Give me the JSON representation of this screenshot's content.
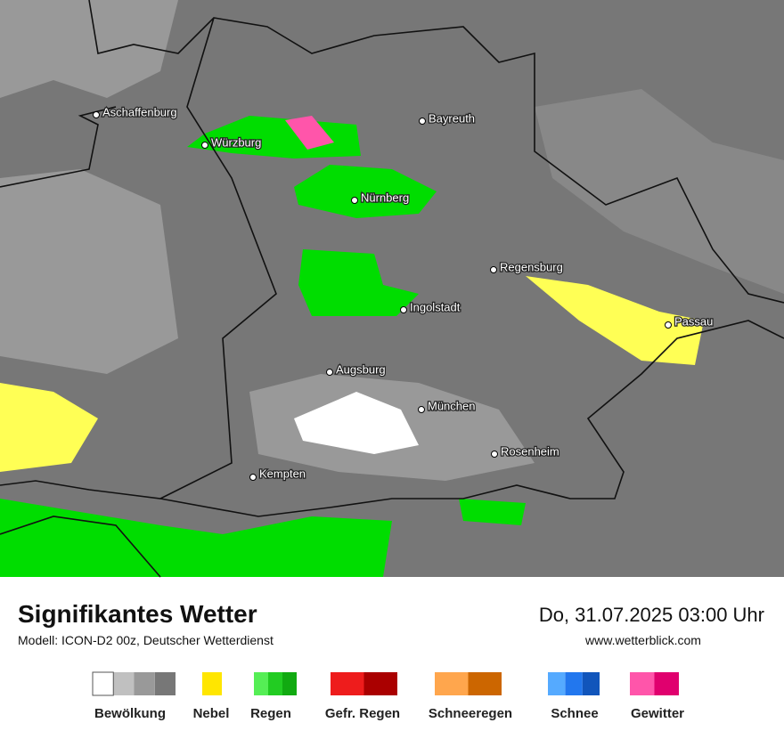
{
  "map": {
    "cities": [
      {
        "name": "Aschaffenburg"
      },
      {
        "name": "Würzburg"
      },
      {
        "name": "Bayreuth"
      },
      {
        "name": "Nürnberg"
      },
      {
        "name": "Regensburg"
      },
      {
        "name": "Ingolstadt"
      },
      {
        "name": "Passau"
      },
      {
        "name": "Augsburg"
      },
      {
        "name": "München"
      },
      {
        "name": "Rosenheim"
      },
      {
        "name": "Kempten"
      }
    ]
  },
  "footer": {
    "title": "Signifikantes Wetter",
    "subtitle": "Modell: ICON-D2 00z, Deutscher Wetterdienst",
    "datetime": "Do, 31.07.2025 03:00 Uhr",
    "website": "www.wetterblick.com"
  },
  "legend": [
    {
      "label": "Bewölkung",
      "colors": [
        "#ffffff",
        "#c0c0c0",
        "#999999",
        "#777777"
      ]
    },
    {
      "label": "Nebel",
      "colors": [
        "#ffe600"
      ]
    },
    {
      "label": "Regen",
      "colors": [
        "#55ee55",
        "#22cc22",
        "#11aa11"
      ]
    },
    {
      "label": "Gefr. Regen",
      "colors": [
        "#ee1c1c",
        "#aa0000"
      ]
    },
    {
      "label": "Schneeregen",
      "colors": [
        "#ffa64d",
        "#cc6600"
      ]
    },
    {
      "label": "Schnee",
      "colors": [
        "#55aaff",
        "#2277ee",
        "#1155bb"
      ]
    },
    {
      "label": "Gewitter",
      "colors": [
        "#ff55aa",
        "#e0006e"
      ]
    }
  ]
}
